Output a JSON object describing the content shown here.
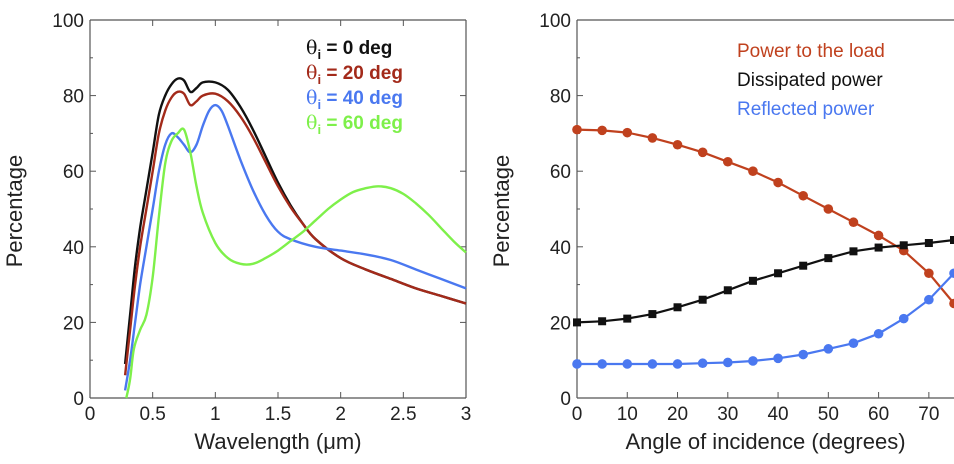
{
  "chart_data": [
    {
      "type": "line",
      "xlabel": "Wavelength (μm)",
      "ylabel": "Percentage",
      "xlim": [
        0,
        3
      ],
      "ylim": [
        0,
        100
      ],
      "xticks": [
        "0",
        "0.5",
        "1",
        "1.5",
        "2",
        "2.5",
        "3"
      ],
      "yticks": [
        "0",
        "20",
        "40",
        "60",
        "80",
        "100"
      ],
      "grid": false,
      "legend_placement": "top-right",
      "series": [
        {
          "name": "θi = 0 deg",
          "legend_symbol": "θ",
          "legend_sub": "i",
          "legend_rest": " = 0 deg",
          "color": "#111111",
          "x": [
            0.28,
            0.32,
            0.36,
            0.4,
            0.45,
            0.5,
            0.55,
            0.6,
            0.65,
            0.7,
            0.75,
            0.8,
            0.85,
            0.9,
            1.0,
            1.1,
            1.2,
            1.3,
            1.4,
            1.5,
            1.6,
            1.7,
            1.8,
            2.0,
            2.2,
            2.4,
            2.6,
            2.8,
            3.0
          ],
          "y": [
            9,
            22,
            35,
            45,
            55,
            65,
            75,
            80,
            83,
            84.5,
            84,
            81,
            82,
            83.5,
            83.5,
            81.5,
            77,
            71,
            64,
            57,
            51,
            46,
            42,
            37,
            34,
            31.5,
            29,
            27,
            25
          ]
        },
        {
          "name": "θi = 20 deg",
          "legend_symbol": "θ",
          "legend_sub": "i",
          "legend_rest": " = 20 deg",
          "color": "#a32a1a",
          "x": [
            0.28,
            0.32,
            0.36,
            0.4,
            0.45,
            0.5,
            0.55,
            0.6,
            0.65,
            0.7,
            0.75,
            0.8,
            0.85,
            0.9,
            1.0,
            1.1,
            1.2,
            1.3,
            1.4,
            1.5,
            1.6,
            1.7,
            1.8,
            2.0,
            2.2,
            2.4,
            2.6,
            2.8,
            3.0
          ],
          "y": [
            6,
            18,
            30,
            40,
            50,
            60,
            70,
            76,
            79.5,
            81,
            80.5,
            77.5,
            78.5,
            80,
            80.5,
            78.5,
            74.5,
            69,
            62.5,
            56,
            50.5,
            46,
            42,
            37,
            34,
            31.5,
            29,
            27,
            25
          ]
        },
        {
          "name": "θi = 40 deg",
          "legend_symbol": "θ",
          "legend_sub": "i",
          "legend_rest": " = 40 deg",
          "color": "#4a78f0",
          "x": [
            0.28,
            0.32,
            0.36,
            0.4,
            0.45,
            0.5,
            0.55,
            0.6,
            0.65,
            0.7,
            0.75,
            0.8,
            0.85,
            0.9,
            0.95,
            1.0,
            1.05,
            1.1,
            1.2,
            1.3,
            1.4,
            1.5,
            1.6,
            1.8,
            2.0,
            2.2,
            2.4,
            2.6,
            2.8,
            3.0
          ],
          "y": [
            2,
            10,
            20,
            30,
            40,
            50,
            60,
            67,
            70,
            69,
            67,
            65,
            67,
            72,
            76,
            77.5,
            76,
            72,
            63,
            55,
            48.5,
            44,
            42,
            40,
            39,
            38,
            36.5,
            34,
            31.5,
            29
          ]
        },
        {
          "name": "θi = 60 deg",
          "legend_symbol": "θ",
          "legend_sub": "i",
          "legend_rest": " = 60 deg",
          "color": "#7ef04a",
          "x": [
            0.29,
            0.32,
            0.35,
            0.4,
            0.45,
            0.5,
            0.55,
            0.6,
            0.65,
            0.7,
            0.75,
            0.8,
            0.85,
            0.9,
            1.0,
            1.1,
            1.2,
            1.3,
            1.4,
            1.5,
            1.6,
            1.7,
            1.8,
            1.9,
            2.0,
            2.1,
            2.2,
            2.3,
            2.4,
            2.5,
            2.6,
            2.7,
            2.8,
            2.9,
            3.0
          ],
          "y": [
            0,
            5,
            13,
            18,
            22,
            32,
            48,
            62,
            68,
            70,
            71,
            65,
            56,
            49,
            41,
            37,
            35.5,
            35.5,
            37,
            39,
            41.5,
            44,
            47,
            50,
            52.5,
            54.5,
            55.5,
            56,
            55.5,
            54,
            51.5,
            48.5,
            45,
            41.5,
            38.5
          ]
        }
      ]
    },
    {
      "type": "line",
      "xlabel": "Angle of incidence (degrees)",
      "ylabel": "Percentage",
      "xlim": [
        0,
        75
      ],
      "ylim": [
        0,
        100
      ],
      "xticks": [
        "0",
        "10",
        "20",
        "30",
        "40",
        "50",
        "60",
        "70"
      ],
      "yticks": [
        "0",
        "20",
        "40",
        "60",
        "80",
        "100"
      ],
      "grid": false,
      "legend_placement": "top-right",
      "series": [
        {
          "name": "Power to the load",
          "color": "#c0411e",
          "marker": "circle",
          "x": [
            0,
            5,
            10,
            15,
            20,
            25,
            30,
            35,
            40,
            45,
            50,
            55,
            60,
            65,
            70,
            75
          ],
          "y": [
            71,
            70.8,
            70.2,
            68.8,
            67,
            65,
            62.5,
            60,
            57,
            53.5,
            50,
            46.5,
            43,
            39,
            33,
            25
          ]
        },
        {
          "name": "Dissipated power",
          "color": "#111111",
          "marker": "square",
          "x": [
            0,
            5,
            10,
            15,
            20,
            25,
            30,
            35,
            40,
            45,
            50,
            55,
            60,
            65,
            70,
            75
          ],
          "y": [
            20,
            20.3,
            21,
            22.2,
            24,
            26,
            28.5,
            31,
            33,
            35,
            37,
            38.8,
            39.8,
            40.4,
            41,
            41.8
          ]
        },
        {
          "name": "Reflected power",
          "color": "#4a78f0",
          "marker": "circle",
          "x": [
            0,
            5,
            10,
            15,
            20,
            25,
            30,
            35,
            40,
            45,
            50,
            55,
            60,
            65,
            70,
            75
          ],
          "y": [
            9,
            9,
            9,
            9,
            9,
            9.2,
            9.4,
            9.8,
            10.5,
            11.5,
            13,
            14.5,
            17,
            21,
            26,
            33
          ]
        }
      ]
    }
  ]
}
